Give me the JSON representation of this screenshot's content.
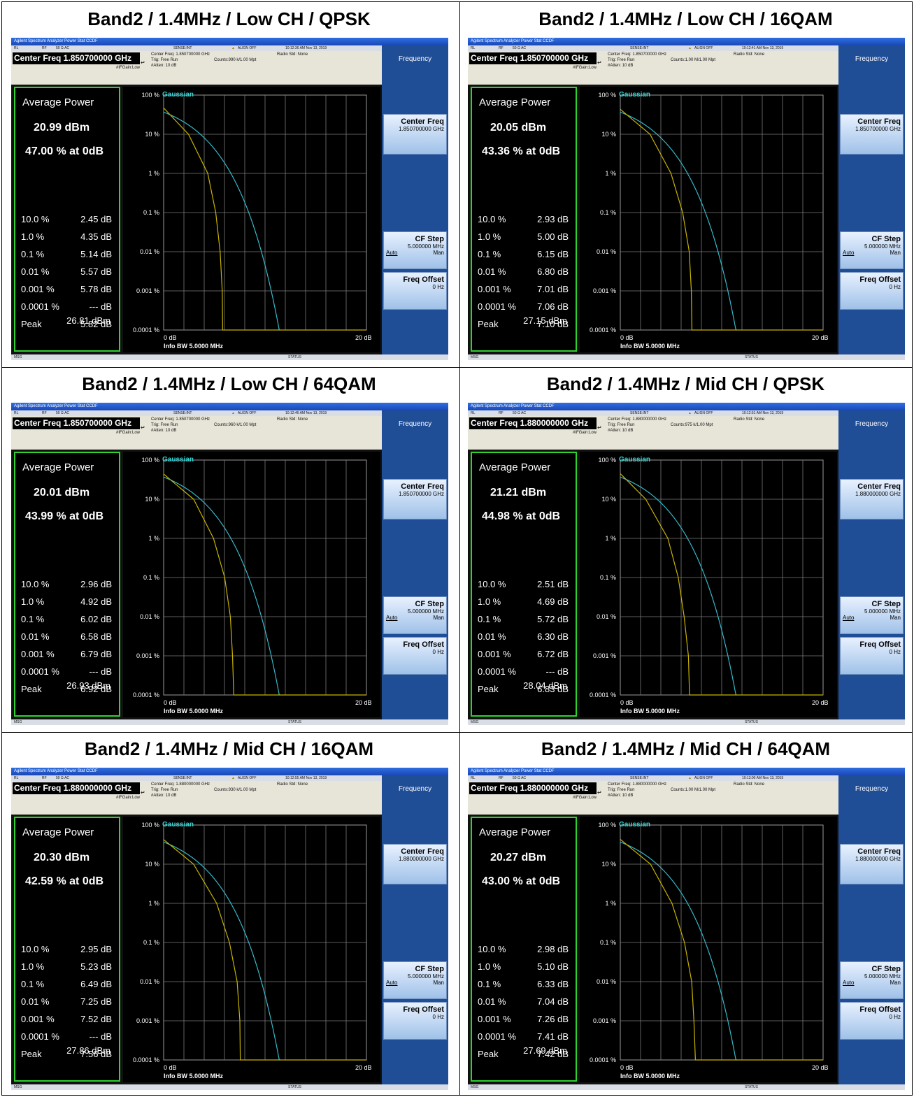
{
  "common": {
    "app_title": "Agilent Spectrum Analyzer   Power Stat CCDF",
    "status_rl": "RL",
    "status_rf": "RF",
    "status_ohm": "50 Ω  AC",
    "status_sense": "SENSE:INT",
    "status_align": "ALIGN OFF",
    "ifgain": "#IFGain:Low",
    "trig": "Trig: Free Run",
    "atten": "#Atten: 10 dB",
    "radio_std": "Radio Std: None",
    "avg_power_label": "Average Power",
    "gaussian_label": "Gaussian",
    "y_ticks": [
      "100 %",
      "10 %",
      "1 %",
      "0.1 %",
      "0.01 %",
      "0.001 %",
      "0.0001 %"
    ],
    "x_start": "0 dB",
    "x_end": "20 dB",
    "info_bw": "Info BW 5.0000 MHz",
    "stat_labels": [
      "10.0 %",
      "1.0 %",
      "0.1 %",
      "0.01 %",
      "0.001 %",
      "0.0001 %",
      "Peak"
    ],
    "softkey_frequency": "Frequency",
    "softkey_center_freq": "Center Freq",
    "softkey_cf_step": "CF Step",
    "softkey_cf_step_value": "5.000000 MHz",
    "softkey_auto": "Auto",
    "softkey_man": "Man",
    "softkey_freq_offset": "Freq Offset",
    "softkey_freq_offset_value": "0 Hz",
    "msg": "MSG",
    "status_label": "STATUS"
  },
  "panels": [
    {
      "title": "Band2 / 1.4MHz / Low CH / QPSK",
      "time": "10:12:36 AM Nov 13, 2019",
      "center_freq": "Center Freq 1.850700000 GHz",
      "center_freq_small": "Center Freq: 1.850700000 GHz",
      "counts": "Counts:990 k/1.00 Mpt",
      "cf_softkey_value": "1.850700000 GHz",
      "avg_dbm": "20.99 dBm",
      "pct_at_0db": "47.00 % at 0dB",
      "stat_values": [
        "2.45 dB",
        "4.35 dB",
        "5.14 dB",
        "5.57 dB",
        "5.78 dB",
        "--- dB",
        "5.82 dB"
      ],
      "peak_dbm": "26.81 dBm"
    },
    {
      "title": "Band2 / 1.4MHz / Low CH / 16QAM",
      "time": "10:12:41 AM Nov 13, 2019",
      "center_freq": "Center Freq 1.850700000 GHz",
      "center_freq_small": "Center Freq: 1.850700000 GHz",
      "counts": "Counts:1.00 M/1.00 Mpt",
      "cf_softkey_value": "1.850700000 GHz",
      "avg_dbm": "20.05 dBm",
      "pct_at_0db": "43.36 % at 0dB",
      "stat_values": [
        "2.93 dB",
        "5.00 dB",
        "6.15 dB",
        "6.80 dB",
        "7.01 dB",
        "7.06 dB",
        "7.10 dB"
      ],
      "peak_dbm": "27.15 dBm"
    },
    {
      "title": "Band2 / 1.4MHz / Low CH / 64QAM",
      "time": "10:12:46 AM Nov 13, 2019",
      "center_freq": "Center Freq 1.850700000 GHz",
      "center_freq_small": "Center Freq: 1.850700000 GHz",
      "counts": "Counts:960 k/1.00 Mpt",
      "cf_softkey_value": "1.850700000 GHz",
      "avg_dbm": "20.01 dBm",
      "pct_at_0db": "43.99 % at 0dB",
      "stat_values": [
        "2.96 dB",
        "4.92 dB",
        "6.02 dB",
        "6.58 dB",
        "6.79 dB",
        "--- dB",
        "6.92 dB"
      ],
      "peak_dbm": "26.93 dBm"
    },
    {
      "title": "Band2 / 1.4MHz / Mid CH / QPSK",
      "time": "10:12:51 AM Nov 13, 2019",
      "center_freq": "Center Freq 1.880000000 GHz",
      "center_freq_small": "Center Freq: 1.880000000 GHz",
      "counts": "Counts:975 k/1.00 Mpt",
      "cf_softkey_value": "1.880000000 GHz",
      "avg_dbm": "21.21 dBm",
      "pct_at_0db": "44.98 % at 0dB",
      "stat_values": [
        "2.51 dB",
        "4.69 dB",
        "5.72 dB",
        "6.30 dB",
        "6.72 dB",
        "--- dB",
        "6.83 dB"
      ],
      "peak_dbm": "28.04 dBm"
    },
    {
      "title": "Band2 / 1.4MHz / Mid CH / 16QAM",
      "time": "10:12:55 AM Nov 13, 2019",
      "center_freq": "Center Freq 1.880000000 GHz",
      "center_freq_small": "Center Freq: 1.880000000 GHz",
      "counts": "Counts:930 k/1.00 Mpt",
      "cf_softkey_value": "1.880000000 GHz",
      "avg_dbm": "20.30 dBm",
      "pct_at_0db": "42.59 % at 0dB",
      "stat_values": [
        "2.95 dB",
        "5.23 dB",
        "6.49 dB",
        "7.25 dB",
        "7.52 dB",
        "--- dB",
        "7.56 dB"
      ],
      "peak_dbm": "27.86 dBm"
    },
    {
      "title": "Band2 / 1.4MHz / Mid CH / 64QAM",
      "time": "10:13:00 AM Nov 13, 2019",
      "center_freq": "Center Freq 1.880000000 GHz",
      "center_freq_small": "Center Freq: 1.880000000 GHz",
      "counts": "Counts:1.00 M/1.00 Mpt",
      "cf_softkey_value": "1.880000000 GHz",
      "avg_dbm": "20.27 dBm",
      "pct_at_0db": "43.00 % at 0dB",
      "stat_values": [
        "2.98 dB",
        "5.10 dB",
        "6.33 dB",
        "7.04 dB",
        "7.26 dB",
        "7.41 dB",
        "7.42 dB"
      ],
      "peak_dbm": "27.69 dBm"
    }
  ],
  "colors": {
    "measured_trace": "#c8b400",
    "gaussian_trace": "#36b8c8",
    "panel_border": "#2ed12e",
    "softkey_bg": "#1f4d96"
  }
}
